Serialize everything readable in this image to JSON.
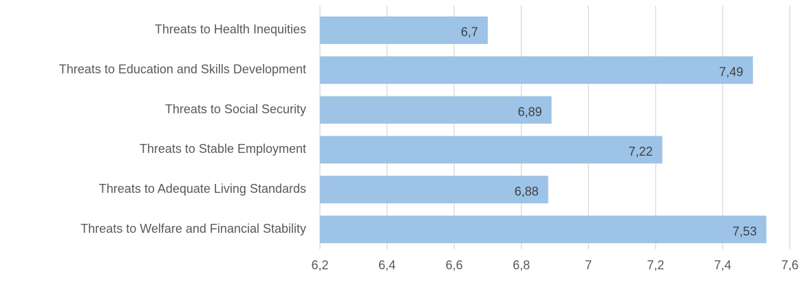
{
  "chart_data": {
    "type": "hbar",
    "categories": [
      "Threats to Health Inequities",
      "Threats to Education and Skills Development",
      "Threats to Social Security",
      "Threats to Stable Employment",
      "Threats to Adequate Living Standards",
      "Threats to Welfare and Financial Stability"
    ],
    "values": [
      6.7,
      7.49,
      6.89,
      7.22,
      6.88,
      7.53
    ],
    "value_labels": [
      "6,7",
      "7,49",
      "6,89",
      "7,22",
      "6,88",
      "7,53"
    ],
    "color": "#9dc3e6",
    "xlim": [
      6.2,
      7.6
    ],
    "xticks": [
      {
        "value": 6.2,
        "label": "6,2"
      },
      {
        "value": 6.4,
        "label": "6,4"
      },
      {
        "value": 6.6,
        "label": "6,6"
      },
      {
        "value": 6.8,
        "label": "6,8"
      },
      7,
      {
        "value": 7.2,
        "label": "7,2"
      },
      {
        "value": 7.4,
        "label": "7,4"
      },
      {
        "value": 7.6,
        "label": "7,6"
      }
    ],
    "grid": true
  }
}
